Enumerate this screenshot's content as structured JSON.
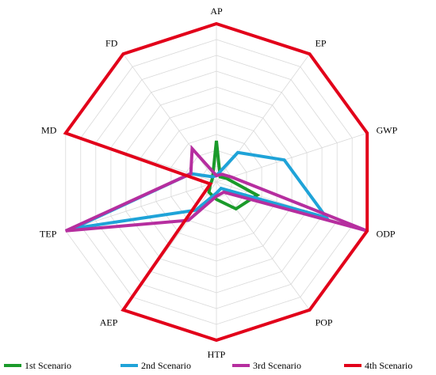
{
  "chart_data": {
    "type": "radar",
    "categories": [
      "AP",
      "EP",
      "GWP",
      "ODP",
      "POP",
      "HTP",
      "AEP",
      "TEP",
      "MD",
      "FD"
    ],
    "rlim": [
      0,
      1
    ],
    "grid": true,
    "legend_position": "bottom",
    "series": [
      {
        "name": "1st Scenario",
        "color": "#1a9a2a",
        "values": [
          0.26,
          0.04,
          0.07,
          0.27,
          0.21,
          0.11,
          0.08,
          0.04,
          0.03,
          0.04
        ]
      },
      {
        "name": "2nd Scenario",
        "color": "#1fa3d8",
        "values": [
          0.04,
          0.23,
          0.45,
          0.73,
          0.05,
          0.07,
          0.22,
          0.95,
          0.17,
          0.04
        ]
      },
      {
        "name": "3rd Scenario",
        "color": "#b62e9f",
        "values": [
          0.04,
          0.06,
          0.1,
          1.0,
          0.08,
          0.09,
          0.3,
          1.0,
          0.17,
          0.26
        ]
      },
      {
        "name": "4th Scenario",
        "color": "#e2001a",
        "values": [
          1.0,
          1.0,
          1.0,
          1.0,
          1.0,
          1.0,
          1.0,
          0.04,
          1.0,
          1.0
        ]
      }
    ]
  }
}
